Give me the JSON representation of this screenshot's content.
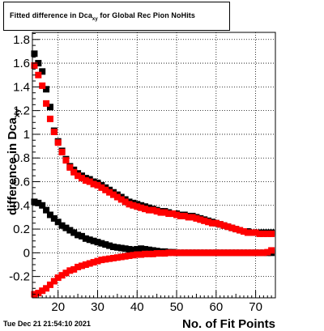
{
  "title": {
    "main": "Fitted difference in Dca",
    "subscript": "xy",
    "rest": " for Global Rec Pion NoHits"
  },
  "timestamp": "Tue Dec 21 21:54:10 2021",
  "chart_data": {
    "type": "scatter",
    "xlabel": "No. of Fit Points",
    "ylabel": "difference in Dca",
    "ylabel_suffix": "xy",
    "xlim": [
      13.5,
      75
    ],
    "ylim": [
      -0.38,
      1.86
    ],
    "x_ticks": [
      20,
      30,
      40,
      50,
      60,
      70
    ],
    "y_ticks": [
      -0.2,
      0,
      0.2,
      0.4,
      0.6,
      0.8,
      1,
      1.2,
      1.4,
      1.6,
      1.8
    ],
    "x_tick_labels": [
      "20",
      "30",
      "40",
      "50",
      "60",
      "70"
    ],
    "y_tick_labels": [
      "-0.2",
      "0",
      "0.2",
      "0.4",
      "0.6",
      "0.8",
      "1",
      "1.2",
      "1.4",
      "1.6",
      "1.8"
    ],
    "grid": true,
    "x": [
      14,
      15,
      16,
      17,
      18,
      19,
      20,
      21,
      22,
      23,
      24,
      25,
      26,
      27,
      28,
      29,
      30,
      31,
      32,
      33,
      34,
      35,
      36,
      37,
      38,
      39,
      40,
      41,
      42,
      43,
      44,
      45,
      46,
      47,
      48,
      49,
      50,
      51,
      52,
      53,
      54,
      55,
      56,
      57,
      58,
      59,
      60,
      61,
      62,
      63,
      64,
      65,
      66,
      67,
      68,
      69,
      70,
      71,
      72,
      73,
      74
    ],
    "series": [
      {
        "color": "#000000",
        "marker": "square",
        "values": [
          1.68,
          1.6,
          1.53,
          1.38,
          1.23,
          1.03,
          0.94,
          0.86,
          0.79,
          0.73,
          0.7,
          0.67,
          0.65,
          0.63,
          0.62,
          0.6,
          0.59,
          0.57,
          0.55,
          0.53,
          0.51,
          0.49,
          0.47,
          0.45,
          0.43,
          0.42,
          0.41,
          0.4,
          0.39,
          0.38,
          0.37,
          0.36,
          0.35,
          0.35,
          0.34,
          0.33,
          0.33,
          0.32,
          0.32,
          0.31,
          0.31,
          0.3,
          0.29,
          0.28,
          0.27,
          0.26,
          0.25,
          0.24,
          0.23,
          0.22,
          0.21,
          0.2,
          0.19,
          0.18,
          0.18,
          0.17,
          0.17,
          0.17,
          0.17,
          0.17,
          0.17
        ]
      },
      {
        "color": "#ff0000",
        "marker": "square",
        "values": [
          1.58,
          1.5,
          1.41,
          1.26,
          1.13,
          1.02,
          0.93,
          0.85,
          0.78,
          0.72,
          0.68,
          0.65,
          0.63,
          0.61,
          0.6,
          0.58,
          0.57,
          0.55,
          0.53,
          0.51,
          0.49,
          0.47,
          0.45,
          0.43,
          0.41,
          0.4,
          0.39,
          0.38,
          0.37,
          0.36,
          0.36,
          0.35,
          0.34,
          0.34,
          0.33,
          0.33,
          0.32,
          0.31,
          0.31,
          0.3,
          0.3,
          0.29,
          0.28,
          0.27,
          0.26,
          0.25,
          0.25,
          0.24,
          0.23,
          0.22,
          0.21,
          0.2,
          0.19,
          0.18,
          0.17,
          0.17,
          0.17,
          0.16,
          0.16,
          0.16,
          0.16
        ]
      },
      {
        "color": "#000000",
        "marker": "square",
        "values": [
          0.43,
          0.42,
          0.4,
          0.36,
          0.32,
          0.29,
          0.26,
          0.23,
          0.21,
          0.19,
          0.17,
          0.15,
          0.14,
          0.12,
          0.11,
          0.1,
          0.09,
          0.08,
          0.07,
          0.06,
          0.05,
          0.045,
          0.04,
          0.035,
          0.03,
          0.025,
          0.03,
          0.035,
          0.03,
          0.025,
          0.02,
          0.015,
          0.01,
          0.01,
          0.005,
          0.005,
          0.0,
          0.0,
          0.0,
          0.0,
          0.0,
          0.0,
          0.0,
          0.0,
          0.0,
          0.0,
          0.0,
          0.0,
          0.0,
          0.0,
          0.0,
          0.0,
          0.0,
          0.0,
          0.0,
          0.0,
          0.0,
          0.0,
          0.0,
          0.0,
          0.0
        ]
      },
      {
        "color": "#ff0000",
        "marker": "square",
        "values": [
          -0.35,
          -0.34,
          -0.32,
          -0.3,
          -0.27,
          -0.24,
          -0.21,
          -0.19,
          -0.17,
          -0.15,
          -0.14,
          -0.12,
          -0.11,
          -0.1,
          -0.09,
          -0.08,
          -0.07,
          -0.06,
          -0.055,
          -0.05,
          -0.045,
          -0.04,
          -0.035,
          -0.03,
          -0.025,
          -0.02,
          -0.015,
          -0.015,
          -0.01,
          -0.01,
          -0.01,
          -0.005,
          -0.005,
          -0.005,
          0.0,
          0.0,
          0.0,
          0.0,
          0.0,
          0.0,
          0.0,
          0.0,
          0.0,
          0.0,
          0.0,
          0.0,
          0.0,
          0.0,
          0.0,
          0.0,
          0.0,
          0.0,
          0.0,
          0.0,
          0.0,
          0.0,
          0.0,
          0.0,
          0.0,
          0.005,
          0.02
        ]
      }
    ]
  }
}
